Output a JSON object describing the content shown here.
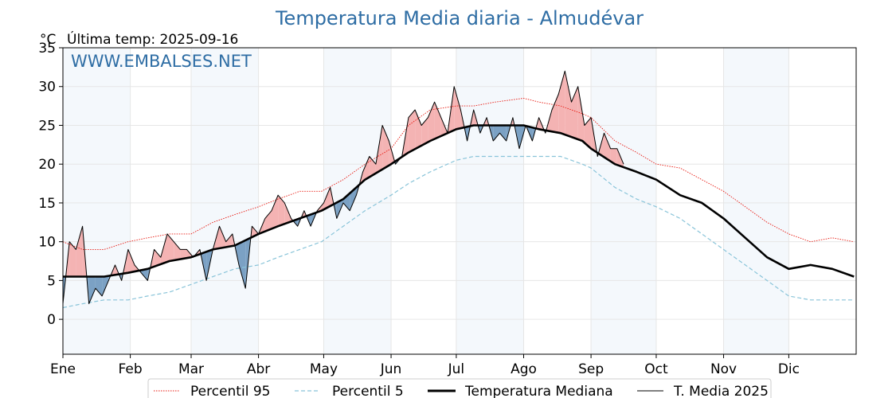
{
  "chart_data": {
    "type": "line",
    "title": "Temperatura Media diaria - Almudévar",
    "y_unit": "°C",
    "last_temp_label": "Última temp: 2025-09-16",
    "watermark": "WWW.EMBALSES.NET",
    "ylim": [
      -4.5,
      35
    ],
    "yticks": [
      0,
      5,
      10,
      15,
      20,
      25,
      30,
      35
    ],
    "months": [
      "Ene",
      "Feb",
      "Mar",
      "Abr",
      "May",
      "Jun",
      "Jul",
      "Ago",
      "Sep",
      "Oct",
      "Nov",
      "Dic"
    ],
    "month_start_day": [
      1,
      32,
      60,
      91,
      121,
      152,
      182,
      213,
      244,
      274,
      305,
      335
    ],
    "grid": true,
    "legend_position": "bottom",
    "series": [
      {
        "name": "Percentil 95",
        "style": "dotted",
        "color": "#e8180f",
        "x": [
          1,
          10,
          20,
          31,
          40,
          50,
          60,
          70,
          80,
          91,
          100,
          110,
          120,
          130,
          140,
          152,
          160,
          170,
          182,
          190,
          200,
          213,
          220,
          230,
          240,
          244,
          255,
          265,
          274,
          285,
          295,
          305,
          315,
          325,
          335,
          345,
          355,
          365
        ],
        "y": [
          10,
          9,
          9,
          10,
          10.5,
          11,
          11,
          12.5,
          13.5,
          14.5,
          15.5,
          16.5,
          16.5,
          18,
          20,
          22,
          25,
          27,
          27.5,
          27.5,
          28,
          28.5,
          28,
          27.5,
          26.5,
          26,
          23,
          21.5,
          20,
          19.5,
          18,
          16.5,
          14.5,
          12.5,
          11,
          10,
          10.5,
          10
        ]
      },
      {
        "name": "Percentil 5",
        "style": "dashed",
        "color": "#89c4d9",
        "x": [
          1,
          10,
          20,
          31,
          40,
          50,
          60,
          70,
          80,
          91,
          100,
          110,
          120,
          130,
          140,
          152,
          160,
          170,
          182,
          190,
          200,
          213,
          220,
          230,
          240,
          244,
          255,
          265,
          274,
          285,
          295,
          305,
          315,
          325,
          335,
          345,
          355,
          365
        ],
        "y": [
          1.5,
          2,
          2.5,
          2.5,
          3,
          3.5,
          4.5,
          5.5,
          6.5,
          7,
          8,
          9,
          10,
          12,
          14,
          16,
          17.5,
          19,
          20.5,
          21,
          21,
          21,
          21,
          21,
          20,
          19.5,
          17,
          15.5,
          14.5,
          13,
          11,
          9,
          7,
          5,
          3,
          2.5,
          2.5,
          2.5
        ]
      },
      {
        "name": "Temperatura Mediana",
        "style": "solid-thick",
        "color": "#000000",
        "x": [
          1,
          10,
          20,
          31,
          40,
          50,
          60,
          70,
          80,
          91,
          100,
          110,
          120,
          130,
          140,
          152,
          160,
          170,
          182,
          190,
          200,
          213,
          220,
          230,
          240,
          244,
          255,
          265,
          274,
          285,
          295,
          305,
          315,
          325,
          335,
          345,
          355,
          365
        ],
        "y": [
          5.5,
          5.5,
          5.5,
          6,
          6.5,
          7.5,
          8,
          9,
          9.5,
          11,
          12,
          13,
          14,
          15.5,
          18,
          20,
          21.5,
          23,
          24.5,
          25,
          25,
          25,
          24.5,
          24,
          23,
          22,
          20,
          19,
          18,
          16,
          15,
          13,
          10.5,
          8,
          6.5,
          7,
          6.5,
          5.5
        ]
      },
      {
        "name": "T. Media 2025",
        "style": "solid-thin",
        "color": "#000000",
        "x": [
          1,
          4,
          7,
          10,
          13,
          16,
          19,
          22,
          25,
          28,
          31,
          34,
          37,
          40,
          43,
          46,
          49,
          52,
          55,
          58,
          61,
          64,
          67,
          70,
          73,
          76,
          79,
          82,
          85,
          88,
          91,
          94,
          97,
          100,
          103,
          106,
          109,
          112,
          115,
          118,
          121,
          124,
          127,
          130,
          133,
          136,
          139,
          142,
          145,
          148,
          151,
          154,
          157,
          160,
          163,
          166,
          169,
          172,
          175,
          178,
          181,
          184,
          187,
          190,
          193,
          196,
          199,
          202,
          205,
          208,
          211,
          214,
          217,
          220,
          223,
          226,
          229,
          232,
          235,
          238,
          241,
          244,
          247,
          250,
          253,
          256,
          259
        ],
        "y": [
          2,
          10,
          9,
          12,
          2,
          4,
          3,
          5,
          7,
          5,
          9,
          7,
          6,
          5,
          9,
          8,
          11,
          10,
          9,
          9,
          8,
          9,
          5,
          9,
          12,
          10,
          11,
          7,
          4,
          12,
          11,
          13,
          14,
          16,
          15,
          13,
          12,
          14,
          12,
          14,
          15,
          17,
          13,
          15,
          14,
          16,
          19,
          21,
          20,
          25,
          23,
          20,
          21,
          26,
          27,
          25,
          26,
          28,
          26,
          24,
          30,
          27,
          23,
          27,
          24,
          26,
          23,
          24,
          23,
          26,
          22,
          25,
          23,
          26,
          24,
          27,
          29,
          32,
          28,
          30,
          25,
          26,
          21,
          24,
          22,
          22,
          20
        ]
      }
    ]
  }
}
